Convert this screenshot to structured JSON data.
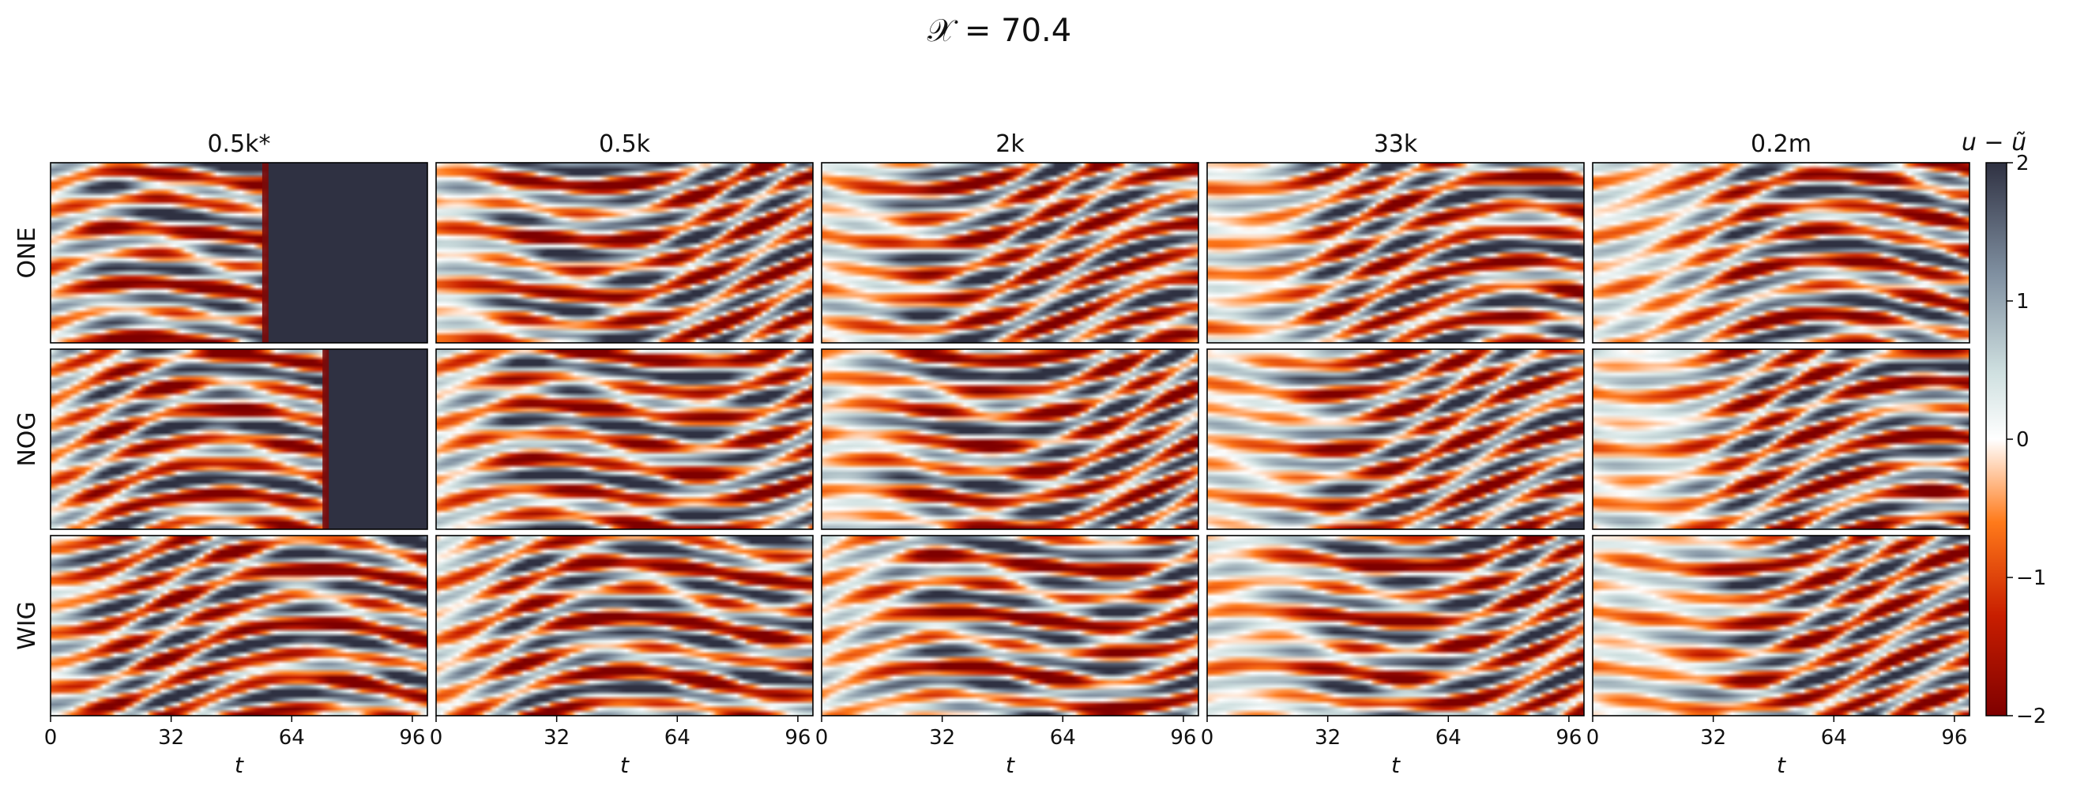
{
  "suptitle": "𝒳 = 70.4",
  "chart_data": {
    "type": "heatmap",
    "title": "𝒳 = 70.4",
    "columns": [
      "0.5k*",
      "0.5k",
      "2k",
      "33k",
      "0.2m"
    ],
    "rows": [
      "ONE",
      "NOG",
      "WIG"
    ],
    "xlabel": "t",
    "xlim": [
      0,
      100
    ],
    "xticks": [
      0,
      32,
      64,
      96
    ],
    "colorbar": {
      "label": "u − ũ",
      "range": [
        -2,
        2
      ],
      "ticks": [
        2,
        1,
        0,
        -1,
        -2
      ],
      "tick_labels": [
        "2",
        "1",
        "0",
        "−1",
        "−2"
      ],
      "colors": [
        "#7f0000",
        "#c81e00",
        "#ff7a1a",
        "#ffffff",
        "#cfe0e0",
        "#7f8fa0",
        "#2f3142"
      ]
    },
    "panels_saturated_after_t": [
      {
        "row": "ONE",
        "column": "0.5k*",
        "t": 57
      },
      {
        "row": "NOG",
        "column": "0.5k*",
        "t": 73
      }
    ]
  }
}
